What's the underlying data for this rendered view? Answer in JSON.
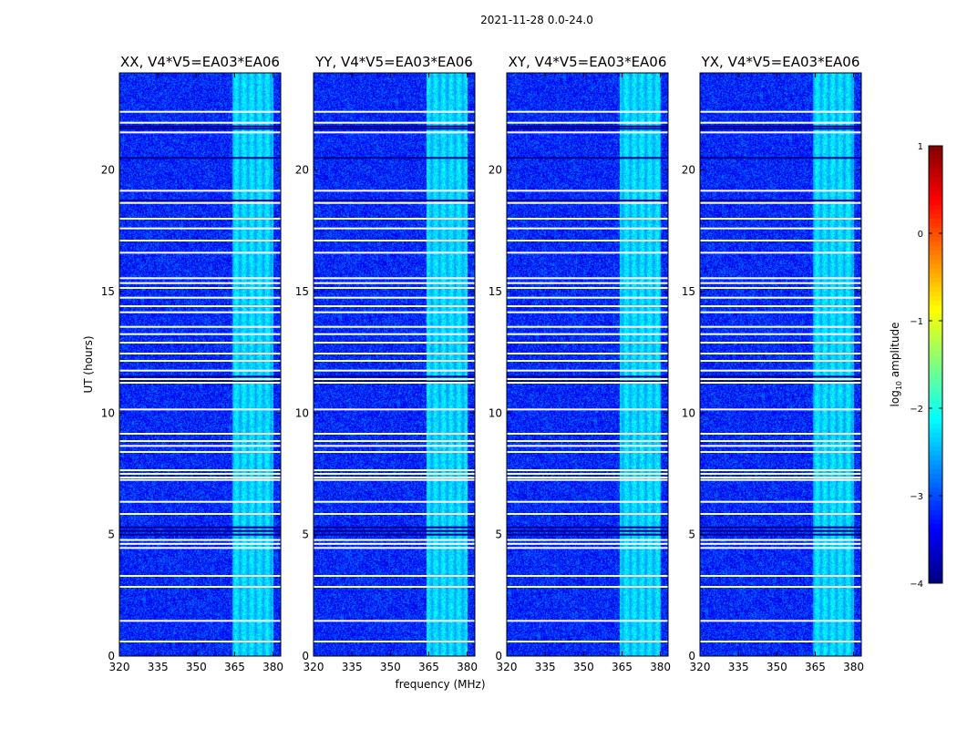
{
  "figure": {
    "suptitle": "2021-11-28 0.0-24.0",
    "ylabel": "UT (hours)",
    "xlabel": "frequency (MHz)",
    "colorbar_label_base": "log",
    "colorbar_label_sub": "10",
    "colorbar_label_rest": " amplitude"
  },
  "chart_data": {
    "type": "heatmap",
    "panels": [
      {
        "name": "XX",
        "title": "XX, V4*V5=EA03*EA06"
      },
      {
        "name": "YY",
        "title": "YY, V4*V5=EA03*EA06"
      },
      {
        "name": "XY",
        "title": "XY, V4*V5=EA03*EA06"
      },
      {
        "name": "YX",
        "title": "YX, V4*V5=EA03*EA06"
      }
    ],
    "xlim": [
      320,
      383
    ],
    "ylim": [
      0,
      24
    ],
    "x_ticks": [
      320,
      335,
      350,
      365,
      380
    ],
    "y_ticks": [
      0,
      5,
      10,
      15,
      20
    ],
    "x_tick_labels": [
      "320",
      "335",
      "350",
      "365",
      "380"
    ],
    "y_tick_labels": [
      "0",
      "5",
      "10",
      "15",
      "20"
    ],
    "colorbar": {
      "range": [
        -4,
        1
      ],
      "ticks": [
        1,
        0,
        -1,
        -2,
        -3,
        -4
      ],
      "tick_labels": [
        "1",
        "0",
        "−1",
        "−2",
        "−3",
        "−4"
      ],
      "colormap": "jet"
    },
    "baseline_log_amplitude": -3.2,
    "rfi_band_mhz": [
      364,
      380
    ],
    "rfi_log_amplitude": -2.2,
    "flagged_hours": [
      0.6,
      1.45,
      2.85,
      3.3,
      4.45,
      4.62,
      4.78,
      5.85,
      6.35,
      7.25,
      7.35,
      7.5,
      7.65,
      8.4,
      8.65,
      8.85,
      9.15,
      10.15,
      11.25,
      11.4,
      11.75,
      12.15,
      12.45,
      12.9,
      13.25,
      13.55,
      14.15,
      14.4,
      14.75,
      15.15,
      15.35,
      15.55,
      16.6,
      17.1,
      17.6,
      18.0,
      18.65,
      19.15,
      21.55,
      21.95,
      22.4
    ],
    "dark_hours": [
      5.0,
      5.15,
      5.3,
      11.3,
      11.5,
      21.7,
      21.8,
      20.5,
      18.75
    ]
  }
}
